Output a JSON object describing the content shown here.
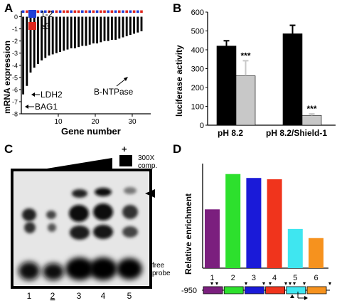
{
  "panel_letters": [
    "A",
    "B",
    "C",
    "D"
  ],
  "chart_data": [
    {
      "panel": "A",
      "type": "bar",
      "ylabel": "mRNA expression",
      "xlabel": "Gene number",
      "xticks": [
        10,
        20,
        30
      ],
      "yticks": [
        -8,
        -7,
        -6,
        -5,
        -4,
        -3,
        -2,
        -1,
        0
      ],
      "ylim": [
        -8,
        0.5
      ],
      "xlim": [
        0,
        35
      ],
      "legend": [
        {
          "label": "1-2",
          "color": "#1f3fd6"
        },
        {
          "label": "≥3",
          "color": "#e0261d"
        }
      ],
      "values": [
        -6.4,
        -5.7,
        -4.6,
        -4.2,
        -3.9,
        -3.6,
        -3.4,
        -3.2,
        -3.1,
        -3.0,
        -2.9,
        -2.8,
        -2.7,
        -2.6,
        -2.6,
        -2.5,
        -2.4,
        -2.4,
        -2.3,
        -2.2,
        -2.2,
        -2.1,
        -2.0,
        -2.0,
        -1.9,
        -1.9,
        -1.8,
        -1.7,
        -1.6,
        -1.5,
        -1.4,
        -1.3,
        -1.2
      ],
      "dot_colors": [
        "#1f3fd6",
        "#e0261d",
        "#1f3fd6",
        "#e0261d",
        "#e0261d",
        "#1f3fd6",
        "#1f3fd6",
        "#e0261d",
        "#1f3fd6",
        "#e0261d",
        "#1f3fd6",
        "#e0261d",
        "#e0261d",
        "#1f3fd6",
        "#e0261d",
        "#e0261d",
        "#1f3fd6",
        "#e0261d",
        "#1f3fd6",
        "#e0261d",
        "#1f3fd6",
        "#e0261d",
        "#e0261d",
        "#1f3fd6",
        "#e0261d",
        "#1f3fd6",
        "#e0261d",
        "#1f3fd6",
        "#e0261d",
        "#1f3fd6",
        "#e0261d",
        "#1f3fd6",
        "#e0261d"
      ],
      "annotations": [
        {
          "label": "BAG1",
          "gene": 1
        },
        {
          "label": "LDH2",
          "gene": 3
        },
        {
          "label": "B-NTPase",
          "gene": 28
        }
      ]
    },
    {
      "panel": "B",
      "type": "bar",
      "ylabel": "luciferase activity",
      "categories": [
        "pH 8.2",
        "pH 8.2/Shield-1"
      ],
      "series": [
        {
          "values": [
            420,
            485
          ],
          "errors": [
            28,
            45
          ],
          "color": "#000000"
        },
        {
          "values": [
            262,
            52
          ],
          "errors": [
            80,
            8
          ],
          "color": "#c8c8c8"
        }
      ],
      "significance": [
        "***",
        "***"
      ],
      "yticks": [
        0,
        100,
        200,
        300,
        400,
        500,
        600
      ],
      "ylim": [
        0,
        600
      ]
    },
    {
      "panel": "D",
      "type": "bar",
      "ylabel": "Relative enrichment",
      "categories": [
        "1",
        "2",
        "3",
        "4",
        "5",
        "6"
      ],
      "values": [
        4.5,
        7.2,
        6.9,
        6.8,
        3.0,
        2.3
      ],
      "colors": [
        "#7b1f7e",
        "#2de02d",
        "#1a1ad8",
        "#f0341c",
        "#3fe6f0",
        "#f6921e"
      ],
      "ylim": [
        0,
        8
      ],
      "position_label": "-950"
    }
  ],
  "panel_c": {
    "label_300x": "300X",
    "label_comp": "comp.",
    "plus": "+",
    "free_label": "free",
    "probe_label": "probe",
    "lanes": [
      "1",
      "2",
      "3",
      "4",
      "5"
    ]
  }
}
